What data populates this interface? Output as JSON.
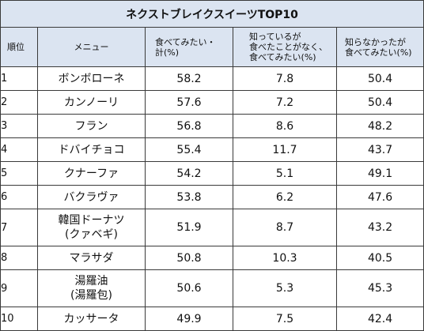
{
  "table": {
    "title": "ネクストブレイクスイーツTOP10",
    "headers": {
      "rank": "順位",
      "menu": "メニュー",
      "want_total": [
        "食べてみたい・",
        "計(%)"
      ],
      "know_not_eaten": [
        "知っているが",
        "食べたことがなく、",
        "食べてみたい(%)"
      ],
      "not_know": [
        "知らなかったが",
        "食べてみたい(%)"
      ]
    },
    "rows": [
      {
        "rank": "1",
        "menu": [
          "ボンボローネ"
        ],
        "want_total": "58.2",
        "know_not_eaten": "7.8",
        "not_know": "50.4"
      },
      {
        "rank": "2",
        "menu": [
          "カンノーリ"
        ],
        "want_total": "57.6",
        "know_not_eaten": "7.2",
        "not_know": "50.4"
      },
      {
        "rank": "3",
        "menu": [
          "フラン"
        ],
        "want_total": "56.8",
        "know_not_eaten": "8.6",
        "not_know": "48.2"
      },
      {
        "rank": "4",
        "menu": [
          "ドバイチョコ"
        ],
        "want_total": "55.4",
        "know_not_eaten": "11.7",
        "not_know": "43.7"
      },
      {
        "rank": "5",
        "menu": [
          "クナーファ"
        ],
        "want_total": "54.2",
        "know_not_eaten": "5.1",
        "not_know": "49.1"
      },
      {
        "rank": "6",
        "menu": [
          "バクラヴァ"
        ],
        "want_total": "53.8",
        "know_not_eaten": "6.2",
        "not_know": "47.6"
      },
      {
        "rank": "7",
        "menu": [
          "韓国ドーナツ",
          "(クァベギ)"
        ],
        "want_total": "51.9",
        "know_not_eaten": "8.7",
        "not_know": "43.2"
      },
      {
        "rank": "8",
        "menu": [
          "マラサダ"
        ],
        "want_total": "50.8",
        "know_not_eaten": "10.3",
        "not_know": "40.5"
      },
      {
        "rank": "9",
        "menu": [
          "湯羅油",
          "(湯羅包)"
        ],
        "want_total": "50.6",
        "know_not_eaten": "5.3",
        "not_know": "45.3"
      },
      {
        "rank": "10",
        "menu": [
          "カッサータ"
        ],
        "want_total": "49.9",
        "know_not_eaten": "7.5",
        "not_know": "42.4"
      }
    ]
  }
}
